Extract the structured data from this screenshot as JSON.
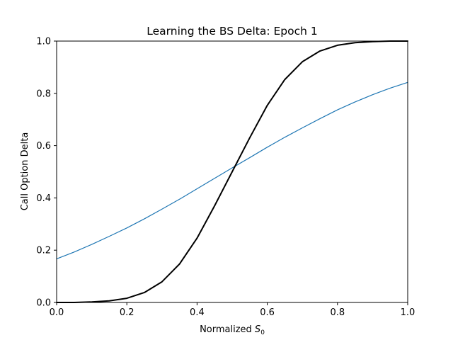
{
  "chart_data": {
    "type": "line",
    "title": "Learning the BS Delta: Epoch 1",
    "xlabel": {
      "main": "Normalized ",
      "var": "S",
      "sub": "0"
    },
    "ylabel": "Call Option Delta",
    "xlim": [
      0.0,
      1.0
    ],
    "ylim": [
      0.0,
      1.0
    ],
    "xticks": [
      "0.0",
      "0.2",
      "0.4",
      "0.6",
      "0.8",
      "1.0"
    ],
    "yticks": [
      "0.0",
      "0.2",
      "0.4",
      "0.6",
      "0.8",
      "1.0"
    ],
    "grid": false,
    "series": [
      {
        "color": "#1f77b4",
        "x": [
          0.0,
          0.05,
          0.1,
          0.15,
          0.2,
          0.25,
          0.3,
          0.35,
          0.4,
          0.45,
          0.5,
          0.55,
          0.6,
          0.65,
          0.7,
          0.75,
          0.8,
          0.85,
          0.9,
          0.95,
          1.0
        ],
        "y": [
          0.167,
          0.193,
          0.222,
          0.253,
          0.285,
          0.32,
          0.357,
          0.395,
          0.435,
          0.475,
          0.515,
          0.554,
          0.594,
          0.632,
          0.668,
          0.703,
          0.737,
          0.767,
          0.795,
          0.82,
          0.842
        ]
      },
      {
        "color": "#000000",
        "x": [
          0.0,
          0.05,
          0.1,
          0.15,
          0.2,
          0.25,
          0.3,
          0.35,
          0.4,
          0.45,
          0.5,
          0.55,
          0.6,
          0.65,
          0.7,
          0.75,
          0.8,
          0.85,
          0.9,
          0.95,
          1.0
        ],
        "y": [
          0.0,
          0.0,
          0.002,
          0.006,
          0.016,
          0.038,
          0.079,
          0.147,
          0.246,
          0.37,
          0.5,
          0.63,
          0.754,
          0.853,
          0.921,
          0.962,
          0.984,
          0.994,
          0.998,
          1.0,
          1.0
        ]
      }
    ]
  }
}
